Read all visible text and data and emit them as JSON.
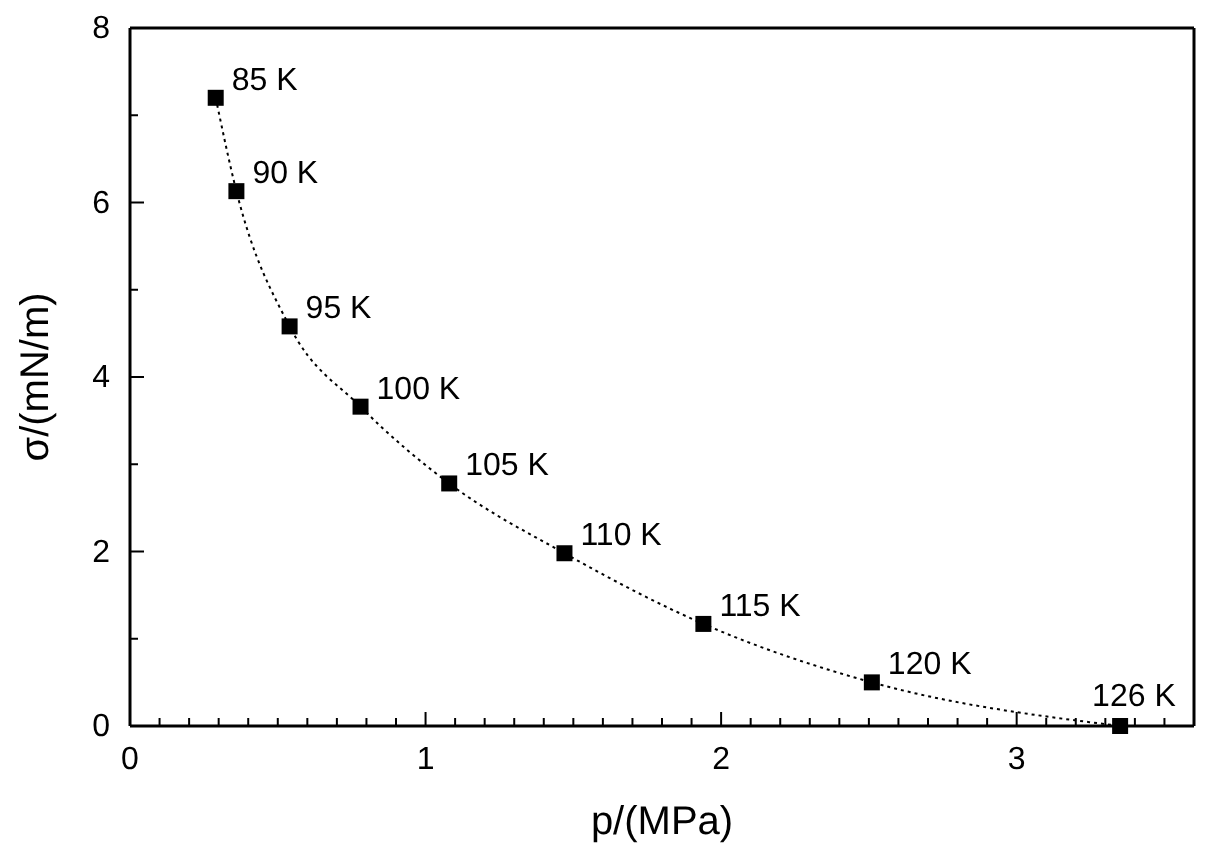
{
  "chart_data": {
    "type": "line",
    "xlabel": "p/(MPa)",
    "ylabel": "σ/(mN/m)",
    "x": [
      0.29,
      0.36,
      0.54,
      0.78,
      1.08,
      1.47,
      1.94,
      2.51,
      3.35
    ],
    "series": [
      {
        "color": "#000000",
        "values": [
          7.2,
          6.13,
          4.58,
          3.66,
          2.78,
          1.98,
          1.17,
          0.5,
          0.0
        ]
      }
    ],
    "marker": "square",
    "line_style": "dotted",
    "xlim": [
      0,
      3.6
    ],
    "ylim": [
      0,
      8
    ],
    "xticks": [
      0,
      {
        "value": 0.1,
        "label": null
      },
      {
        "value": 0.2,
        "label": null
      },
      {
        "value": 0.3,
        "label": null
      },
      {
        "value": 0.4,
        "label": null
      },
      {
        "value": 0.5,
        "label": null
      },
      {
        "value": 0.6,
        "label": null
      },
      {
        "value": 0.7,
        "label": null
      },
      {
        "value": 0.8,
        "label": null
      },
      {
        "value": 0.9,
        "label": null
      },
      1,
      {
        "value": 1.1,
        "label": null
      },
      {
        "value": 1.2,
        "label": null
      },
      {
        "value": 1.3,
        "label": null
      },
      {
        "value": 1.4,
        "label": null
      },
      {
        "value": 1.5,
        "label": null
      },
      {
        "value": 1.6,
        "label": null
      },
      {
        "value": 1.7,
        "label": null
      },
      {
        "value": 1.8,
        "label": null
      },
      {
        "value": 1.9,
        "label": null
      },
      2,
      {
        "value": 2.1,
        "label": null
      },
      {
        "value": 2.2,
        "label": null
      },
      {
        "value": 2.3,
        "label": null
      },
      {
        "value": 2.4,
        "label": null
      },
      {
        "value": 2.5,
        "label": null
      },
      {
        "value": 2.6,
        "label": null
      },
      {
        "value": 2.7,
        "label": null
      },
      {
        "value": 2.8,
        "label": null
      },
      {
        "value": 2.9,
        "label": null
      },
      3,
      {
        "value": 3.1,
        "label": null
      },
      {
        "value": 3.2,
        "label": null
      },
      {
        "value": 3.3,
        "label": null
      },
      {
        "value": 3.4,
        "label": null
      },
      {
        "value": 3.5,
        "label": null
      }
    ],
    "yticks": [
      0,
      {
        "value": 1,
        "label": null
      },
      2,
      {
        "value": 3,
        "label": null
      },
      4,
      {
        "value": 5,
        "label": null
      },
      6,
      {
        "value": 7,
        "label": null
      },
      8
    ],
    "grid": false,
    "annotations": [
      {
        "text": "85 K",
        "x": 0.29,
        "y": 7.2
      },
      {
        "text": "90 K",
        "x": 0.36,
        "y": 6.13
      },
      {
        "text": "95 K",
        "x": 0.54,
        "y": 4.58
      },
      {
        "text": "100 K",
        "x": 0.78,
        "y": 3.66
      },
      {
        "text": "105 K",
        "x": 1.08,
        "y": 2.78
      },
      {
        "text": "110 K",
        "x": 1.47,
        "y": 1.98
      },
      {
        "text": "115 K",
        "x": 1.94,
        "y": 1.17
      },
      {
        "text": "120 K",
        "x": 2.51,
        "y": 0.5
      },
      {
        "text": "126 K",
        "x": 3.35,
        "y": 0.0
      }
    ]
  }
}
